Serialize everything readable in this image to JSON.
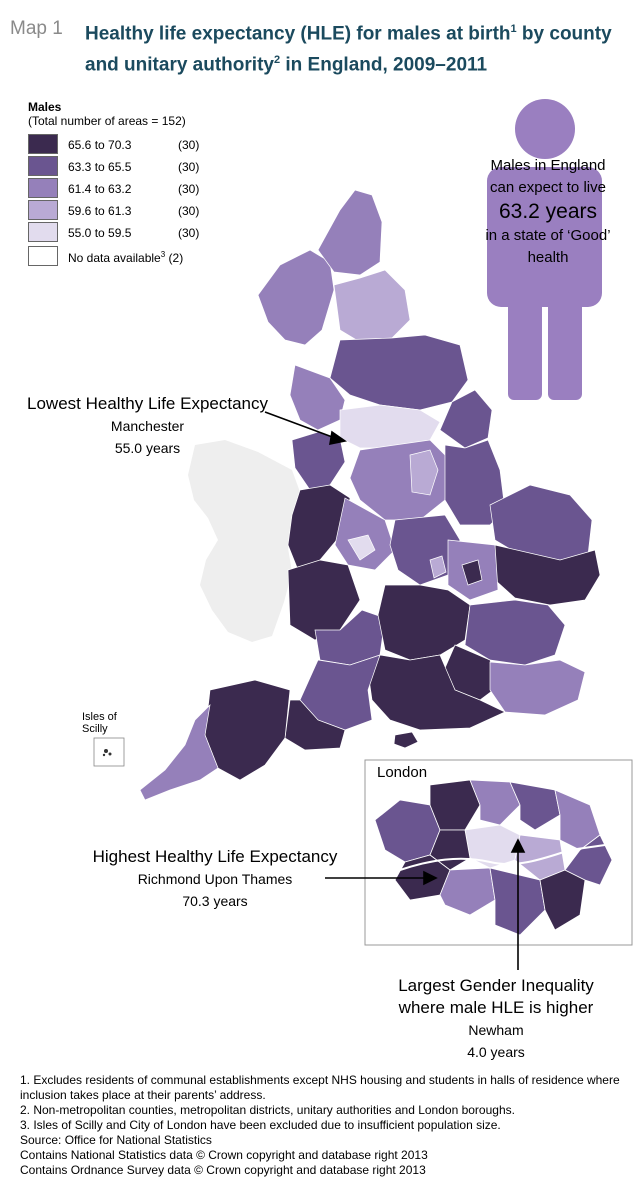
{
  "header": {
    "map_label": "Map 1",
    "title_a": "Healthy life expectancy (HLE) for males at birth",
    "title_sup1": "1",
    "title_b": " by county and unitary authority",
    "title_sup2": "2",
    "title_c": " in England, 2009–2011"
  },
  "legend": {
    "title": "Males",
    "subtitle": "(Total number of areas = 152)",
    "items": [
      {
        "range": "65.6 to 70.3",
        "count": "(30)",
        "color": "#3b2a4f"
      },
      {
        "range": "63.3 to 65.5",
        "count": "(30)",
        "color": "#6a5590"
      },
      {
        "range": "61.4 to 63.2",
        "count": "(30)",
        "color": "#9580ba"
      },
      {
        "range": "59.6 to 61.3",
        "count": "(30)",
        "color": "#b9aad4"
      },
      {
        "range": "55.0 to 59.5",
        "count": "(30)",
        "color": "#e2dcee"
      }
    ],
    "nodata_label": "No data available",
    "nodata_sup": "3",
    "nodata_count": "(2)"
  },
  "callout": {
    "line1": "Males in England",
    "line2": "can expect to live",
    "value": "63.2 years",
    "line3": "in a state of ‘Good’",
    "line4": "health",
    "figure_color": "#9a7fc0"
  },
  "annotations": {
    "lowest": {
      "title": "Lowest Healthy Life Expectancy",
      "area": "Manchester",
      "value": "55.0 years"
    },
    "highest": {
      "title": "Highest Healthy Life Expectancy",
      "area": "Richmond Upon Thames",
      "value": "70.3 years"
    },
    "gender": {
      "title1": "Largest Gender Inequality",
      "title2": "where male HLE is higher",
      "area": "Newham",
      "value": "4.0 years"
    }
  },
  "inset": {
    "london": "London",
    "scilly_line1": "Isles of",
    "scilly_line2": "Scilly"
  },
  "footnotes": [
    "1. Excludes residents of communal establishments except NHS housing and students in halls of residence where inclusion takes place at their parents’ address.",
    "2. Non-metropolitan counties, metropolitan districts, unitary authorities and London boroughs.",
    "3. Isles of Scilly and City of London have been excluded due to insufficient population size.",
    "Source: Office for National Statistics",
    "Contains National Statistics data © Crown copyright and database right 2013",
    "Contains Ordnance Survey data © Crown copyright and database right 2013"
  ]
}
